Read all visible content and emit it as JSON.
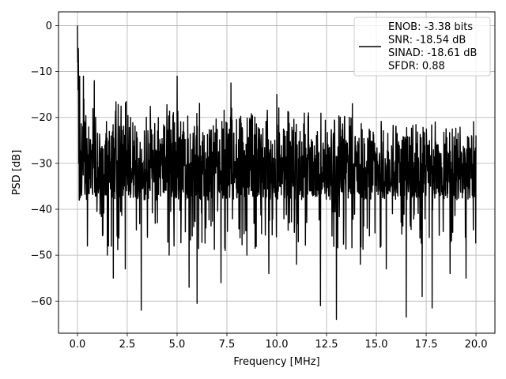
{
  "chart_data": {
    "type": "line",
    "xlabel": "Frequency [MHz]",
    "ylabel": "PSD [dB]",
    "xlim": [
      -0.95,
      20.95
    ],
    "ylim": [
      -67,
      3
    ],
    "xticks": [
      0.0,
      2.5,
      5.0,
      7.5,
      10.0,
      12.5,
      15.0,
      17.5,
      20.0
    ],
    "xtick_labels": [
      "0.0",
      "2.5",
      "5.0",
      "7.5",
      "10.0",
      "12.5",
      "15.0",
      "17.5",
      "20.0"
    ],
    "yticks": [
      0,
      -10,
      -20,
      -30,
      -40,
      -50,
      -60
    ],
    "ytick_labels": [
      "0",
      "−10",
      "−20",
      "−30",
      "−40",
      "−50",
      "−60"
    ],
    "grid": true,
    "legend_position": "top-right",
    "legend": [
      "ENOB: -3.38 bits",
      "SNR: -18.54 dB",
      "SINAD: -18.61 dB",
      "SFDR: 0.88"
    ],
    "series": [
      {
        "color": "#000000",
        "description": "Noisy power spectral density: peak 0 dB near DC, noise band between about -15 dB and -40 dB with occasional dips to about -64 dB",
        "peaks": [
          {
            "x": 0.0,
            "y": 0.0
          },
          {
            "x": 0.05,
            "y": -5
          },
          {
            "x": 0.1,
            "y": -8
          },
          {
            "x": 0.3,
            "y": -11
          },
          {
            "x": 0.85,
            "y": -12
          },
          {
            "x": 5.0,
            "y": -11
          },
          {
            "x": 7.7,
            "y": -12.5
          },
          {
            "x": 10.0,
            "y": -15
          },
          {
            "x": 13.8,
            "y": -17
          },
          {
            "x": 17.3,
            "y": -19
          }
        ],
        "dips": [
          {
            "x": 0.1,
            "y": -38
          },
          {
            "x": 0.5,
            "y": -48
          },
          {
            "x": 1.5,
            "y": -50
          },
          {
            "x": 1.8,
            "y": -55
          },
          {
            "x": 2.4,
            "y": -53
          },
          {
            "x": 3.2,
            "y": -62
          },
          {
            "x": 4.6,
            "y": -50
          },
          {
            "x": 5.6,
            "y": -57
          },
          {
            "x": 6.0,
            "y": -60.5
          },
          {
            "x": 7.2,
            "y": -56
          },
          {
            "x": 8.5,
            "y": -50
          },
          {
            "x": 9.6,
            "y": -54
          },
          {
            "x": 11.0,
            "y": -52
          },
          {
            "x": 12.2,
            "y": -61
          },
          {
            "x": 13.0,
            "y": -64
          },
          {
            "x": 14.2,
            "y": -52
          },
          {
            "x": 15.5,
            "y": -53
          },
          {
            "x": 16.5,
            "y": -63.5
          },
          {
            "x": 17.3,
            "y": -59
          },
          {
            "x": 17.8,
            "y": -61.5
          },
          {
            "x": 18.7,
            "y": -54
          },
          {
            "x": 19.5,
            "y": -55
          }
        ]
      }
    ]
  }
}
